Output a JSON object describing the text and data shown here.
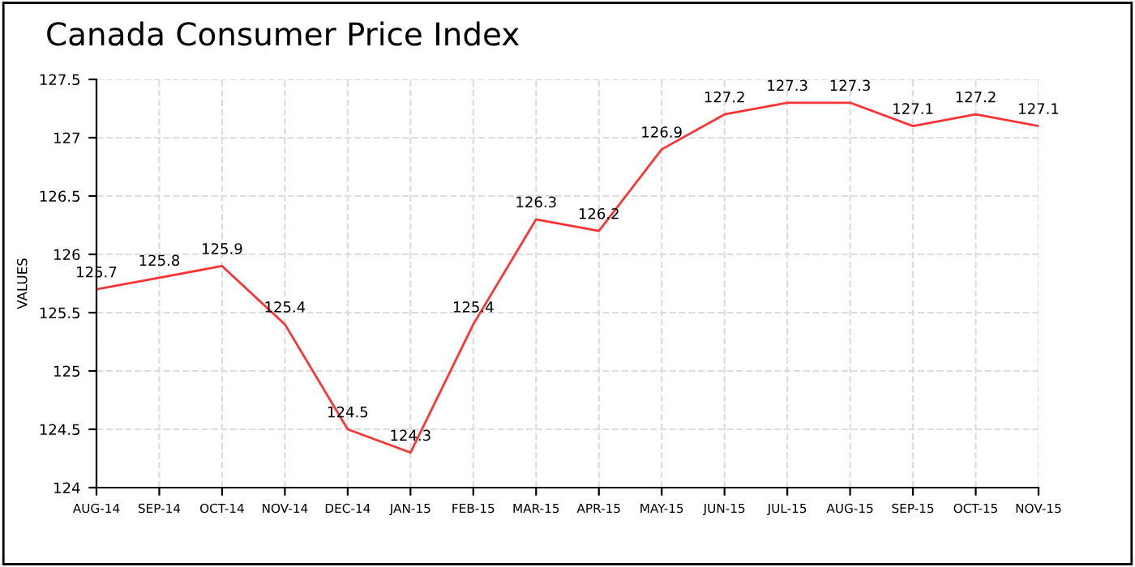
{
  "chart_data": {
    "type": "line",
    "title": "Canada Consumer Price Index",
    "ylabel": "VALUES",
    "categories": [
      "AUG-14",
      "SEP-14",
      "OCT-14",
      "NOV-14",
      "DEC-14",
      "JAN-15",
      "FEB-15",
      "MAR-15",
      "APR-15",
      "MAY-15",
      "JUN-15",
      "JUL-15",
      "AUG-15",
      "SEP-15",
      "OCT-15",
      "NOV-15"
    ],
    "series": [
      {
        "color": "#ff3333",
        "values": [
          125.7,
          125.8,
          125.9,
          125.4,
          124.5,
          124.3,
          125.4,
          126.3,
          126.2,
          126.9,
          127.2,
          127.3,
          127.3,
          127.1,
          127.2,
          127.1
        ]
      }
    ],
    "ylim": [
      124,
      127.5
    ],
    "yticks": [
      124,
      124.5,
      125,
      125.5,
      126,
      126.5,
      127,
      127.5
    ],
    "grid": true,
    "data_labels": true,
    "marker": "none",
    "line_style": "solid"
  }
}
